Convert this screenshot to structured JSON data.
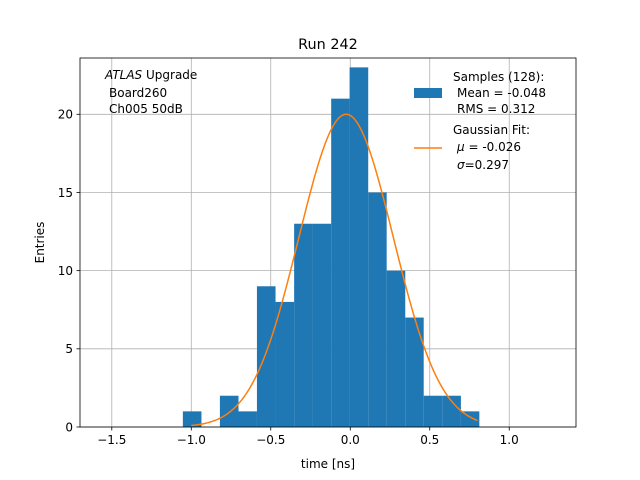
{
  "chart_data": {
    "type": "bar",
    "title": "Run 242",
    "xlabel": "time [ns]",
    "ylabel": "Entries",
    "xlim": [
      -1.7,
      1.42
    ],
    "ylim": [
      0,
      23.6
    ],
    "grid": true,
    "xticks": [
      -1.5,
      -1.0,
      -0.5,
      0.0,
      0.5,
      1.0
    ],
    "xtick_labels": [
      "−1.5",
      "−1.0",
      "−0.5",
      "0.0",
      "0.5",
      "1.0"
    ],
    "yticks": [
      0,
      5,
      10,
      15,
      20
    ],
    "ytick_labels": [
      "0",
      "5",
      "10",
      "15",
      "20"
    ],
    "annotation": {
      "line1_italic": "ATLAS",
      "line1_rest": " Upgrade",
      "line2": "Board260",
      "line3": "Ch005 50dB"
    },
    "histogram": {
      "bin_edges": [
        -1.053,
        -0.936,
        -0.82,
        -0.703,
        -0.587,
        -0.47,
        -0.353,
        -0.237,
        -0.12,
        -0.004,
        0.113,
        0.229,
        0.346,
        0.462,
        0.579,
        0.696,
        0.812
      ],
      "counts": [
        1,
        0,
        2,
        1,
        9,
        8,
        13,
        13,
        21,
        23,
        15,
        10,
        7,
        2,
        2,
        1
      ],
      "color": "#1f77b4"
    },
    "fit": {
      "mu": -0.026,
      "sigma": 0.297,
      "amplitude": 20.0,
      "x_range": [
        -1.0,
        0.8
      ],
      "color": "#ff7f0e"
    },
    "legend": {
      "placement": "top-right",
      "samples": {
        "line1": "Samples (128):",
        "line2": "Mean = -0.048",
        "line3": "RMS = 0.312"
      },
      "gaussian": {
        "line1": "Gaussian Fit:",
        "line2_rest": " = -0.026",
        "line3_rest": "=0.297",
        "mu_symbol": "μ",
        "sigma_symbol": "σ"
      }
    }
  }
}
